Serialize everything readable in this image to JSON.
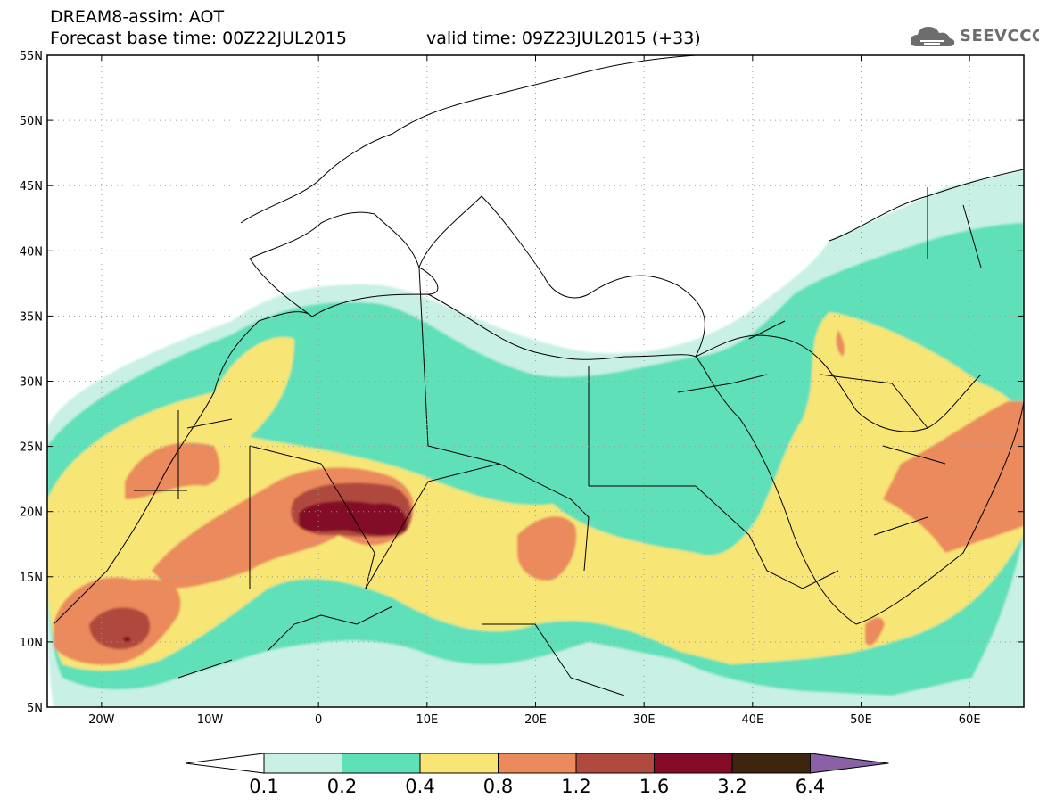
{
  "header": {
    "title_line1": "DREAM8-assim: AOT",
    "base_time": "Forecast base time: 00Z22JUL2015",
    "valid_time": "valid time: 09Z23JUL2015 (+33)",
    "logo_text": "SEEVCCC"
  },
  "map": {
    "lon_range": [
      -25,
      65
    ],
    "lat_range": [
      5,
      55
    ],
    "lat_labels": [
      {
        "lat": 55,
        "text": "55N"
      },
      {
        "lat": 50,
        "text": "50N"
      },
      {
        "lat": 45,
        "text": "45N"
      },
      {
        "lat": 40,
        "text": "40N"
      },
      {
        "lat": 35,
        "text": "35N"
      },
      {
        "lat": 30,
        "text": "30N"
      },
      {
        "lat": 25,
        "text": "25N"
      },
      {
        "lat": 20,
        "text": "20N"
      },
      {
        "lat": 15,
        "text": "15N"
      },
      {
        "lat": 10,
        "text": "10N"
      },
      {
        "lat": 5,
        "text": "5N"
      }
    ],
    "lon_labels": [
      {
        "lon": -20,
        "text": "20W"
      },
      {
        "lon": -10,
        "text": "10W"
      },
      {
        "lon": 0,
        "text": "0"
      },
      {
        "lon": 10,
        "text": "10E"
      },
      {
        "lon": 20,
        "text": "20E"
      },
      {
        "lon": 30,
        "text": "30E"
      },
      {
        "lon": 40,
        "text": "40E"
      },
      {
        "lon": 50,
        "text": "50E"
      },
      {
        "lon": 60,
        "text": "60E"
      }
    ]
  },
  "colorbar": {
    "colors": [
      "#ffffff",
      "#c8f0e4",
      "#5fe0b8",
      "#f7e576",
      "#eb8a5c",
      "#b04a3e",
      "#830b28",
      "#3d2510",
      "#8a61a6"
    ],
    "labels": [
      "0.1",
      "0.2",
      "0.4",
      "0.8",
      "1.2",
      "1.6",
      "3.2",
      "6.4"
    ]
  },
  "chart_data": {
    "type": "heatmap",
    "variable": "AOT",
    "levels": [
      0.1,
      0.2,
      0.4,
      0.8,
      1.2,
      1.6,
      3.2,
      6.4
    ],
    "xlim": [
      -25,
      65
    ],
    "ylim": [
      5,
      55
    ]
  }
}
